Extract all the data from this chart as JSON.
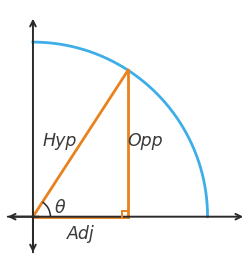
{
  "theta_deg": 57,
  "circle_color": "#3daee8",
  "triangle_color": "#e8821e",
  "axis_color": "#2a2a2a",
  "label_color": "#3a3a3a",
  "background_color": "#ffffff",
  "hyp_label": "Hyp",
  "opp_label": "Opp",
  "adj_label": "Adj",
  "theta_label": "θ",
  "xlim": [
    -0.16,
    1.22
  ],
  "ylim": [
    -0.22,
    1.15
  ],
  "figsize": [
    2.51,
    2.71
  ],
  "dpi": 100,
  "font_size": 12.5,
  "axis_lw": 1.4,
  "tri_lw": 2.0
}
